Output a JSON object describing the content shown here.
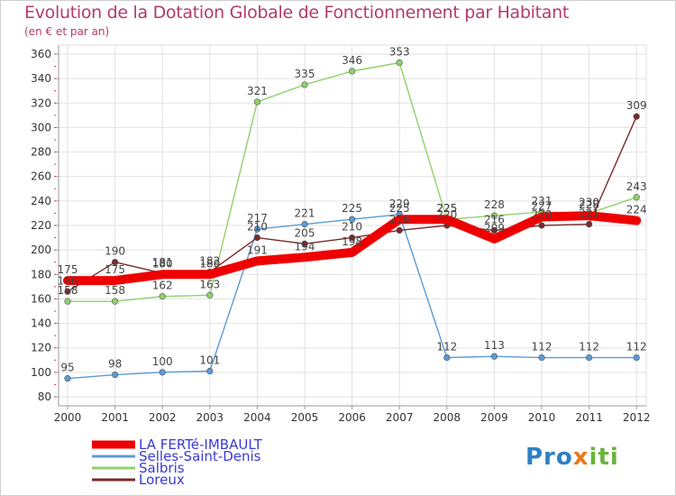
{
  "header": {
    "title": "Evolution de la Dotation Globale de Fonctionnement par Habitant",
    "subtitle": "(en € et par an)"
  },
  "logo": {
    "text": "Proxiti",
    "part1": "Pro",
    "part2": "x",
    "part3": "iti"
  },
  "chart_data": {
    "type": "line",
    "title": "Evolution de la Dotation Globale de Fonctionnement par Habitant",
    "ylabel": "(en € et par an)",
    "xlabel": "",
    "x": [
      "2000",
      "2001",
      "2002",
      "2003",
      "2004",
      "2005",
      "2006",
      "2007",
      "2008",
      "2009",
      "2010",
      "2011",
      "2012"
    ],
    "ylim": [
      80,
      360
    ],
    "yticks": [
      "80",
      "100",
      "120",
      "140",
      "160",
      "180",
      "200",
      "220",
      "240",
      "260",
      "280",
      "300",
      "320",
      "340",
      "360"
    ],
    "grid": true,
    "legend_position": "bottom-left",
    "series": [
      {
        "name": "LA FERTé-IMBAULT",
        "color": "#ee0000",
        "values": [
          175,
          175,
          180,
          180,
          191,
          194,
          198,
          225,
          225,
          209,
          227,
          228,
          224
        ],
        "labels": [
          "175",
          "175",
          "180",
          "180",
          "191",
          "194",
          "198",
          "225",
          "225",
          "209",
          "227",
          "228",
          "224"
        ]
      },
      {
        "name": "Selles-Saint-Denis",
        "color": "#5b9bd5",
        "values": [
          95,
          98,
          100,
          101,
          217,
          221,
          225,
          229,
          112,
          113,
          112,
          112,
          112
        ],
        "labels": [
          "95",
          "98",
          "100",
          "101",
          "217",
          "221",
          "225",
          "229",
          "112",
          "113",
          "112",
          "112",
          "112"
        ]
      },
      {
        "name": "Salbris",
        "color": "#8fd16a",
        "values": [
          158,
          158,
          162,
          163,
          321,
          335,
          346,
          353,
          225,
          228,
          231,
          230,
          243
        ],
        "labels": [
          "158",
          "158",
          "162",
          "163",
          "321",
          "335",
          "346",
          "353",
          "225",
          "228",
          "231",
          "230",
          "243"
        ]
      },
      {
        "name": "Loreux",
        "color": "#7a2a2a",
        "values": [
          166,
          190,
          181,
          182,
          210,
          205,
          210,
          216,
          220,
          216,
          220,
          221,
          309
        ],
        "labels": [
          "166",
          "190",
          "181",
          "182",
          "210",
          "205",
          "210",
          "216",
          "220",
          "216",
          "220",
          "221",
          "309"
        ]
      }
    ]
  }
}
